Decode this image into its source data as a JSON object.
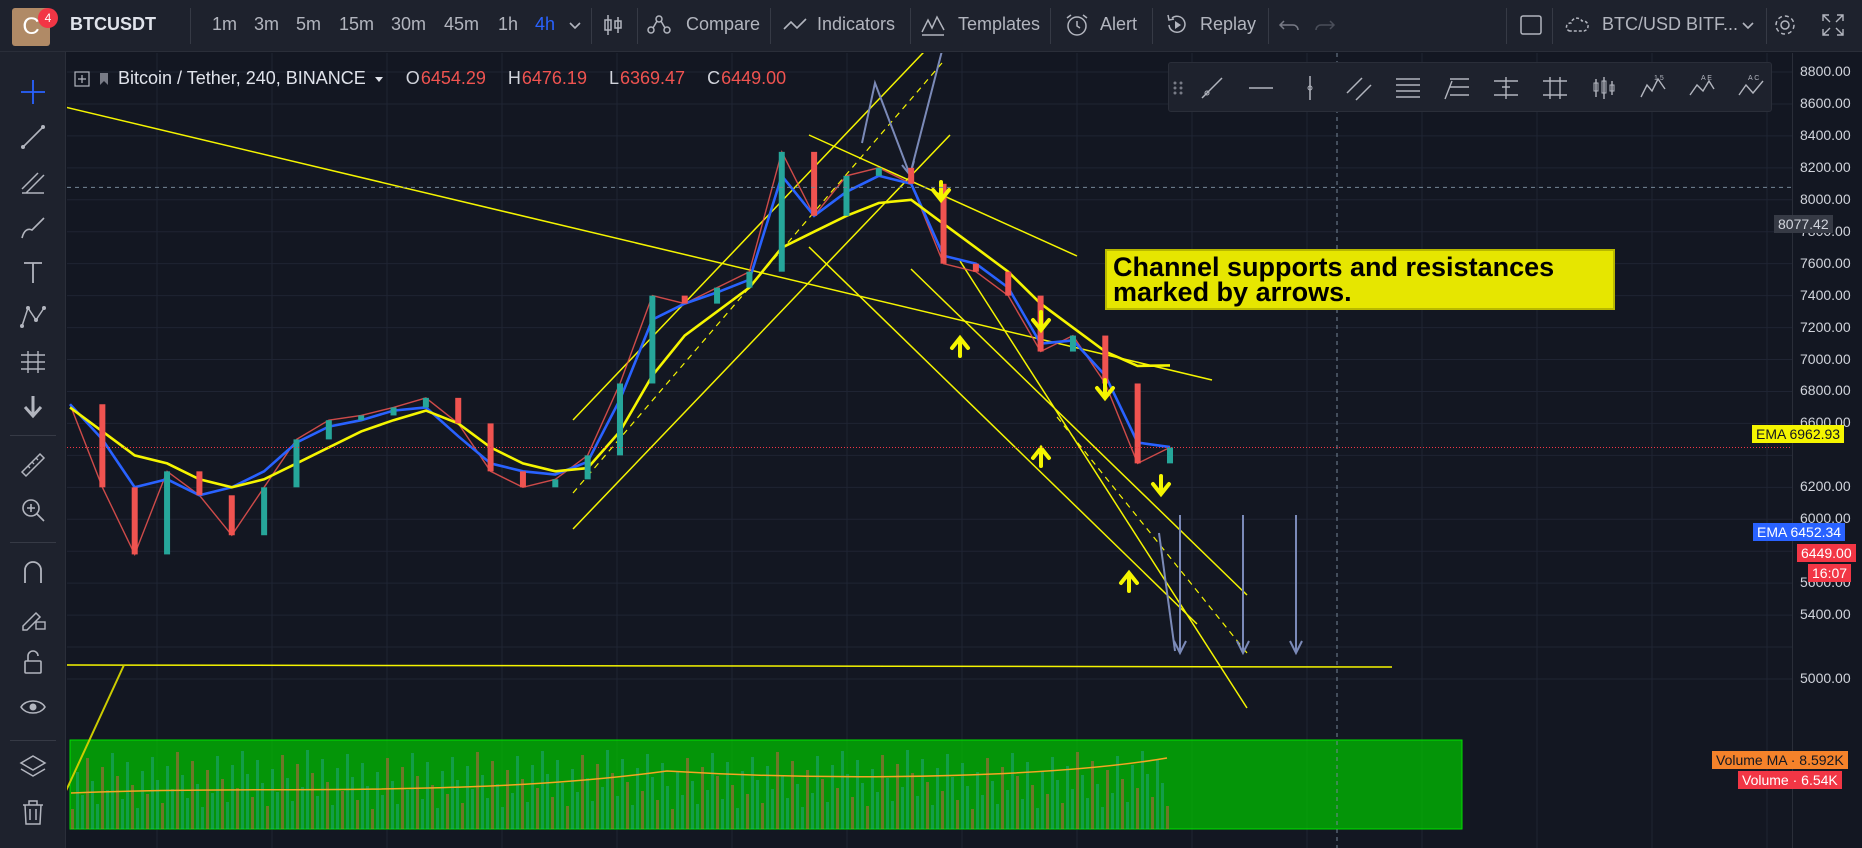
{
  "header": {
    "avatar_letter": "C",
    "notifications": "4",
    "symbol": "BTCUSDT",
    "intervals": [
      "1m",
      "3m",
      "5m",
      "15m",
      "30m",
      "45m",
      "1h",
      "4h"
    ],
    "active_interval": "4h",
    "compare_label": "Compare",
    "indicators_label": "Indicators",
    "templates_label": "Templates",
    "alert_label": "Alert",
    "replay_label": "Replay",
    "watch_symbol": "BTC/USD BITF..."
  },
  "legend": {
    "title": "Bitcoin / Tether, 240, BINANCE",
    "open_label": "O",
    "open_value": "6454.29",
    "high_label": "H",
    "high_value": "6476.19",
    "low_label": "L",
    "low_value": "6369.47",
    "close_label": "C",
    "close_value": "6449.00"
  },
  "annotation": {
    "line1": "Channel supports and resistances",
    "line2": "marked by arrows."
  },
  "price_axis": {
    "ticks": [
      "8800.00",
      "8600.00",
      "8400.00",
      "8200.00",
      "8000.00",
      "7800.00",
      "7600.00",
      "7400.00",
      "7200.00",
      "7000.00",
      "6800.00",
      "6600.00",
      "6200.00",
      "6000.00",
      "5800.00",
      "5600.00",
      "5400.00",
      "5000.00"
    ],
    "crosshair_price": "8077.42",
    "ema_yellow_label": "EMA",
    "ema_yellow_value": "6962.93",
    "ema_blue_label": "EMA",
    "ema_blue_value": "6452.34",
    "last_price": "6449.00",
    "countdown": "16:07",
    "volume_ma_label": "Volume MA",
    "volume_ma_value": "8.592K",
    "volume_label": "Volume",
    "volume_value": "6.54K"
  },
  "colors": {
    "background": "#131722",
    "panel": "#1e222d",
    "accent": "#2962ff",
    "up_candle": "#26a69a",
    "down_candle": "#ef5350",
    "trend_line": "#f5f500",
    "ema_blue": "#2962ff",
    "projection_arrow": "#7b8ab8",
    "volume_zone": "#00c000"
  },
  "chart_data": {
    "type": "line",
    "title": "Bitcoin / Tether, 240, BINANCE",
    "ylim": [
      4800,
      8900
    ],
    "series": [
      {
        "name": "Price",
        "values": [
          6720,
          6200,
          5780,
          6300,
          6150,
          5900,
          6200,
          6500,
          6620,
          6650,
          6700,
          6760,
          6600,
          6300,
          6200,
          6250,
          6400,
          6850,
          7400,
          7350,
          7450,
          7550,
          8300,
          7900,
          8150,
          8200,
          8100,
          7600,
          7550,
          7400,
          7050,
          7150,
          6850,
          6350,
          6450
        ]
      },
      {
        "name": "EMA",
        "values": [
          6720,
          6500,
          6200,
          6250,
          6150,
          6200,
          6300,
          6480,
          6580,
          6620,
          6680,
          6700,
          6520,
          6350,
          6300,
          6280,
          6360,
          6750,
          7250,
          7350,
          7420,
          7500,
          8150,
          7900,
          8050,
          8150,
          8100,
          7650,
          7600,
          7450,
          7100,
          7120,
          6900,
          6480,
          6452
        ]
      },
      {
        "name": "EMA",
        "values": [
          6700,
          6550,
          6400,
          6350,
          6250,
          6200,
          6250,
          6350,
          6450,
          6550,
          6620,
          6680,
          6600,
          6450,
          6350,
          6300,
          6320,
          6550,
          6900,
          7150,
          7300,
          7450,
          7700,
          7800,
          7900,
          7980,
          8000,
          7850,
          7700,
          7550,
          7350,
          7200,
          7050,
          6960,
          6963
        ]
      }
    ]
  }
}
